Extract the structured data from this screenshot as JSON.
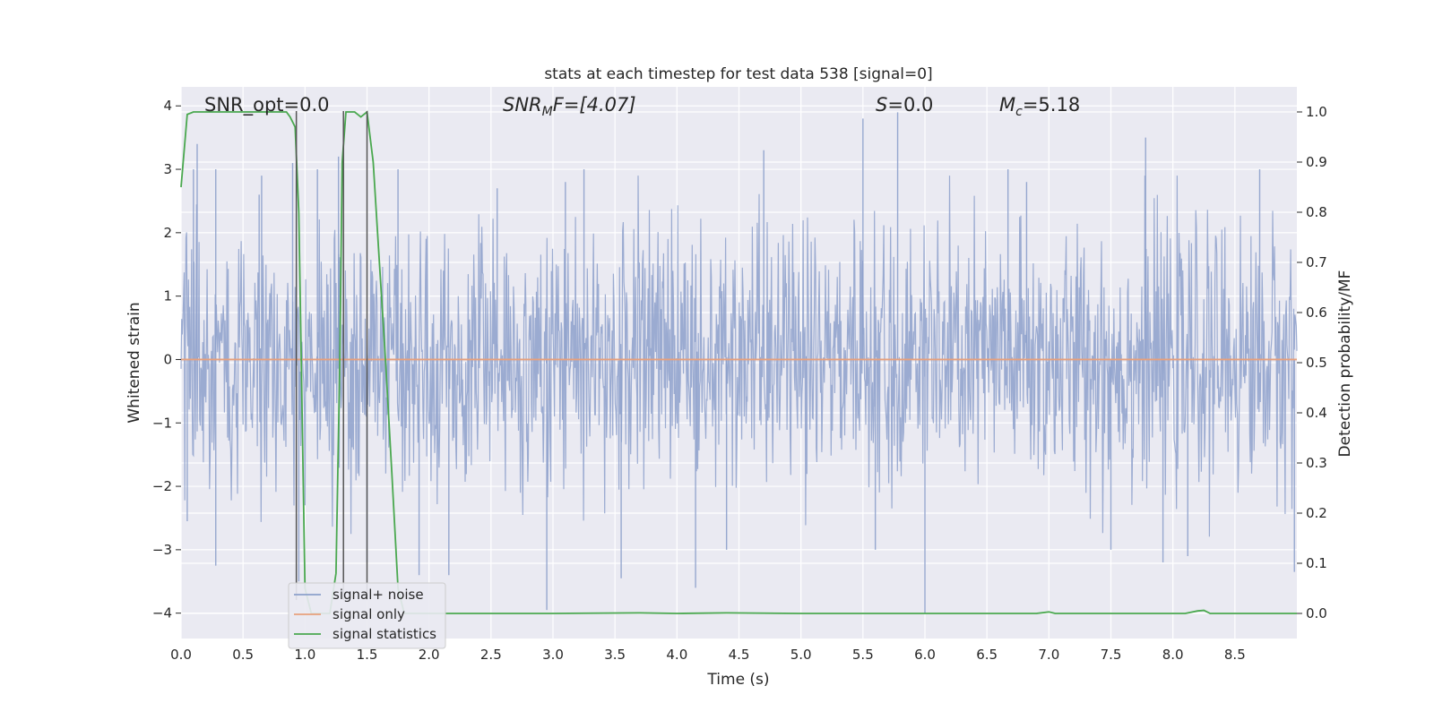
{
  "chart_data": {
    "type": "line",
    "title": "stats at each timestep for test data 538 [signal=0]",
    "xlabel": "Time (s)",
    "ylabel": "Whitened strain",
    "ylabel_right": "Detection probability/MF",
    "xlim": [
      0.0,
      9.0
    ],
    "ylim": [
      -4.4,
      4.3
    ],
    "ylim_right": [
      -0.05,
      1.05
    ],
    "xticks": [
      "0.0",
      "0.5",
      "1.0",
      "1.5",
      "2.0",
      "2.5",
      "3.0",
      "3.5",
      "4.0",
      "4.5",
      "5.0",
      "5.5",
      "6.0",
      "6.5",
      "7.0",
      "7.5",
      "8.0",
      "8.5"
    ],
    "yticks": [
      "4",
      "3",
      "2",
      "1",
      "0",
      "−1",
      "−2",
      "−3",
      "−4"
    ],
    "yticks_right": [
      "1.0",
      "0.9",
      "0.8",
      "0.7",
      "0.6",
      "0.5",
      "0.4",
      "0.3",
      "0.2",
      "0.1",
      "0.0"
    ],
    "grid": true,
    "legend_position": "lower-left",
    "annotations": {
      "snr_opt": "SNR_opt=0.0",
      "snr_mf_main": "SNR",
      "snr_mf_sub": "M",
      "snr_mf_rest": "F=[4.07]",
      "s_main": "S",
      "s_rest": "=0.0",
      "mc_main": "M",
      "mc_sub": "c",
      "mc_rest": "=5.18"
    },
    "series": [
      {
        "name": "signal+ noise",
        "color": "#8da0cb",
        "description_of_values": "whitened strain noise time series",
        "envelope_upper_peaks": [
          [
            0.1,
            3.0
          ],
          [
            0.13,
            3.4
          ],
          [
            0.28,
            3.0
          ],
          [
            0.63,
            2.6
          ],
          [
            0.65,
            2.9
          ],
          [
            0.9,
            3.1
          ],
          [
            1.1,
            3.0
          ],
          [
            1.27,
            3.2
          ],
          [
            1.75,
            3.0
          ],
          [
            2.55,
            2.7
          ],
          [
            3.1,
            2.8
          ],
          [
            3.25,
            3.0
          ],
          [
            4.7,
            3.3
          ],
          [
            5.5,
            3.8
          ],
          [
            5.78,
            3.9
          ],
          [
            6.67,
            3.0
          ],
          [
            6.82,
            2.8
          ],
          [
            7.78,
            3.5
          ],
          [
            8.7,
            3.0
          ]
        ],
        "envelope_lower_peaks": [
          [
            0.05,
            -2.55
          ],
          [
            0.28,
            -3.25
          ],
          [
            0.95,
            -3.5
          ],
          [
            1.5,
            -3.2
          ],
          [
            1.92,
            -3.4
          ],
          [
            2.16,
            -3.4
          ],
          [
            2.95,
            -3.95
          ],
          [
            3.55,
            -3.45
          ],
          [
            4.15,
            -3.6
          ],
          [
            4.4,
            -3.0
          ],
          [
            5.6,
            -3.0
          ],
          [
            6.0,
            -4.0
          ],
          [
            7.5,
            -3.0
          ],
          [
            7.92,
            -3.2
          ],
          [
            8.12,
            -3.1
          ],
          [
            8.98,
            -3.35
          ]
        ]
      },
      {
        "name": "signal only",
        "color": "#e7a07c",
        "x": [
          0.0,
          9.0
        ],
        "y": [
          0.0,
          0.0
        ]
      },
      {
        "name": "signal statistics",
        "color": "#4aa84f",
        "axis": "right",
        "x": [
          0.0,
          0.05,
          0.1,
          0.15,
          0.2,
          0.3,
          0.4,
          0.5,
          0.6,
          0.7,
          0.8,
          0.85,
          0.88,
          0.92,
          0.95,
          1.0,
          1.05,
          1.1,
          1.15,
          1.2,
          1.25,
          1.28,
          1.3,
          1.33,
          1.36,
          1.4,
          1.45,
          1.5,
          1.55,
          1.6,
          1.65,
          1.7,
          1.75,
          1.8,
          1.85,
          1.9,
          2.0,
          3.0,
          3.7,
          4.0,
          4.4,
          5.0,
          6.0,
          6.9,
          7.0,
          7.05,
          7.1,
          8.0,
          8.1,
          8.2,
          8.25,
          8.3,
          8.4,
          9.0
        ],
        "y": [
          0.85,
          0.995,
          1.0,
          1.0,
          1.0,
          1.0,
          1.0,
          1.0,
          1.0,
          1.0,
          1.0,
          1.0,
          0.99,
          0.97,
          0.8,
          0.05,
          0.0,
          0.0,
          0.0,
          0.0,
          0.08,
          0.5,
          0.9,
          1.0,
          1.0,
          1.0,
          0.99,
          1.0,
          0.9,
          0.7,
          0.5,
          0.28,
          0.05,
          0.0,
          0.0,
          0.0,
          0.0,
          0.0,
          0.001,
          0.0,
          0.001,
          0.0,
          0.0,
          0.0,
          0.003,
          0.0,
          0.0,
          0.0,
          0.0,
          0.005,
          0.006,
          0.0,
          0.0,
          0.0
        ]
      }
    ],
    "vertical_markers_x": [
      0.93,
      1.31,
      1.5
    ]
  }
}
